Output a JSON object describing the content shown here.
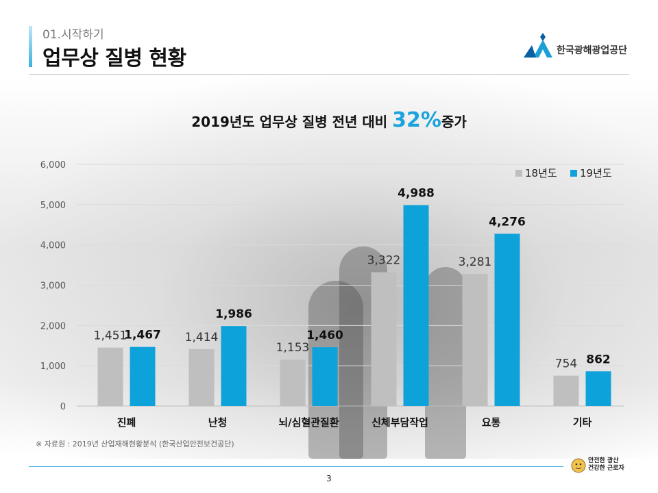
{
  "header": {
    "section": "01.시작하기",
    "title": "업무상 질병 현황",
    "org_name": "한국광해광업공단"
  },
  "chart_title": {
    "prefix": "2019년도 업무상 질병 전년 대비 ",
    "highlight": "32%",
    "suffix": "증가"
  },
  "chart_data": {
    "type": "bar",
    "categories": [
      "진폐",
      "난청",
      "뇌/심혈관질환",
      "신체부담작업",
      "요통",
      "기타"
    ],
    "series": [
      {
        "name": "18년도",
        "values": [
          1451,
          1414,
          1153,
          3322,
          3281,
          754
        ],
        "color": "#bfbfbf"
      },
      {
        "name": "19년도",
        "values": [
          1467,
          1986,
          1460,
          4988,
          4276,
          862
        ],
        "color": "#0ea2da"
      }
    ],
    "value_labels": [
      [
        "1,451",
        "1,414",
        "1,153",
        "3,322",
        "3,281",
        "754"
      ],
      [
        "1,467",
        "1,986",
        "1,460",
        "4,988",
        "4,276",
        "862"
      ]
    ],
    "yticks": [
      "0",
      "1,000",
      "2,000",
      "3,000",
      "4,000",
      "5,000",
      "6,000"
    ],
    "ylim": [
      0,
      6000
    ],
    "grid": true,
    "legend": "top-right"
  },
  "source_note": "※  자료원 : 2019년 산업재해현황분석 (한국산업안전보건공단)",
  "page_number": "3",
  "badge": {
    "line1": "안전한 광산",
    "line2": "건강한 근로자"
  },
  "colors": {
    "accent": "#1aa3dc"
  }
}
